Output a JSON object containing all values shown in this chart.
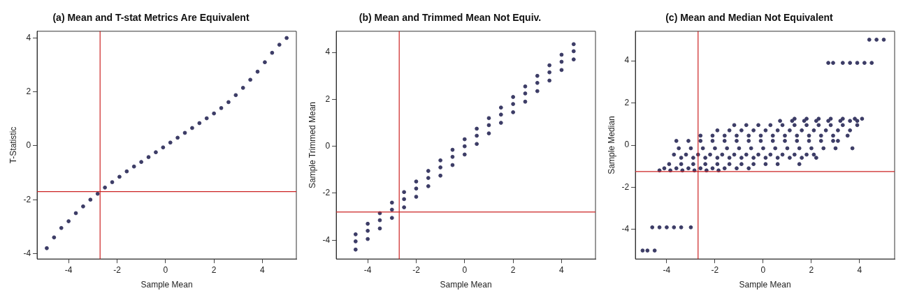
{
  "chart_data": [
    {
      "type": "scatter",
      "title": "(a) Mean and T-stat Metrics Are Equivalent",
      "xlabel": "Sample Mean",
      "ylabel": "T-Statistic",
      "xlim": [
        -5.3,
        5.4
      ],
      "ylim": [
        -4.2,
        4.25
      ],
      "xticks": [
        -4,
        -2,
        0,
        2,
        4
      ],
      "yticks": [
        -4,
        -2,
        0,
        2,
        4
      ],
      "grid": false,
      "marker": "circle",
      "ref_lines": [
        {
          "axis": "x",
          "value": -2.7,
          "color": "#cc2222"
        },
        {
          "axis": "y",
          "value": -1.7,
          "color": "#cc2222"
        }
      ],
      "series": [
        {
          "color": "#3c3c66",
          "x": [
            -4.9,
            -4.6,
            -4.3,
            -4,
            -3.7,
            -3.4,
            -3.1,
            -2.8,
            -2.5,
            -2.2,
            -1.9,
            -1.6,
            -1.3,
            -1,
            -0.7,
            -0.4,
            -0.1,
            0.2,
            0.5,
            0.8,
            1.1,
            1.4,
            1.7,
            2,
            2.3,
            2.6,
            2.9,
            3.2,
            3.5,
            3.8,
            4.1,
            4.4,
            4.7,
            5
          ],
          "values": [
            -3.8,
            -3.4,
            -3.05,
            -2.8,
            -2.5,
            -2.25,
            -2,
            -1.78,
            -1.55,
            -1.35,
            -1.15,
            -0.95,
            -0.77,
            -0.6,
            -0.42,
            -0.24,
            -0.06,
            0.12,
            0.3,
            0.48,
            0.66,
            0.84,
            1.02,
            1.2,
            1.4,
            1.62,
            1.88,
            2.15,
            2.45,
            2.75,
            3.1,
            3.45,
            3.75,
            4
          ]
        }
      ]
    },
    {
      "type": "scatter",
      "title": "(b) Mean and Trimmed Mean Not Equiv.",
      "xlabel": "Sample Mean",
      "ylabel": "Sample Trimmed Mean",
      "xlim": [
        -5.3,
        5.4
      ],
      "ylim": [
        -4.8,
        4.9
      ],
      "xticks": [
        -4,
        -2,
        0,
        2,
        4
      ],
      "yticks": [
        -4,
        -2,
        0,
        2,
        4
      ],
      "grid": false,
      "marker": "circle",
      "ref_lines": [
        {
          "axis": "x",
          "value": -2.7,
          "color": "#cc2222"
        },
        {
          "axis": "y",
          "value": -2.8,
          "color": "#cc2222"
        }
      ],
      "series": [
        {
          "color": "#3c3c66",
          "x": [
            -4.5,
            -4,
            -3.5,
            -3,
            -2.5,
            -2,
            -1.5,
            -1,
            -0.5,
            0,
            0.5,
            1,
            1.5,
            2,
            2.5,
            3,
            3.5,
            4,
            4.5
          ],
          "values": [
            -3.75,
            -3.3,
            -2.85,
            -2.4,
            -1.95,
            -1.5,
            -1.05,
            -0.6,
            -0.15,
            0.3,
            0.75,
            1.2,
            1.65,
            2.1,
            2.55,
            3,
            3.45,
            3.9,
            4.35
          ]
        },
        {
          "color": "#3c3c66",
          "x": [
            -4.5,
            -4,
            -3.5,
            -3,
            -2.5,
            -2,
            -1.5,
            -1,
            -0.5,
            0,
            0.5,
            1,
            1.5,
            2,
            2.5,
            3,
            3.5,
            4,
            4.5
          ],
          "values": [
            -4.05,
            -3.6,
            -3.15,
            -2.7,
            -2.25,
            -1.8,
            -1.35,
            -0.9,
            -0.45,
            0,
            0.45,
            0.9,
            1.35,
            1.8,
            2.25,
            2.7,
            3.15,
            3.6,
            4.05
          ]
        },
        {
          "color": "#3c3c66",
          "x": [
            -4.5,
            -4,
            -3.5,
            -3,
            -2.5,
            -2,
            -1.5,
            -1,
            -0.5,
            0,
            0.5,
            1,
            1.5,
            2,
            2.5,
            3,
            3.5,
            4,
            4.5
          ],
          "values": [
            -4.4,
            -3.95,
            -3.5,
            -3.05,
            -2.6,
            -2.15,
            -1.7,
            -1.25,
            -0.8,
            -0.35,
            0.1,
            0.55,
            1,
            1.45,
            1.9,
            2.35,
            2.8,
            3.25,
            3.7
          ]
        }
      ]
    },
    {
      "type": "scatter",
      "title": "(c) Mean and Median Not Equivalent",
      "xlabel": "Sample Mean",
      "ylabel": "Sample Median",
      "xlim": [
        -5.3,
        5.45
      ],
      "ylim": [
        -5.4,
        5.4
      ],
      "xticks": [
        -4,
        -2,
        0,
        2,
        4
      ],
      "yticks": [
        -4,
        -2,
        0,
        2,
        4
      ],
      "grid": false,
      "marker": "circle",
      "ref_lines": [
        {
          "axis": "x",
          "value": -2.7,
          "color": "#cc2222"
        },
        {
          "axis": "y",
          "value": -1.25,
          "color": "#cc2222"
        }
      ],
      "series": [
        {
          "color": "#3c3c66",
          "x": [
            4.4,
            4.7,
            5
          ],
          "values": [
            5,
            5,
            5
          ]
        },
        {
          "color": "#3c3c66",
          "x": [
            2.7,
            2.9,
            3.3,
            3.6,
            3.9,
            4.2,
            4.5
          ],
          "values": [
            3.9,
            3.9,
            3.9,
            3.9,
            3.9,
            3.9,
            3.9
          ]
        },
        {
          "color": "#3c3c66",
          "x": [
            1.3,
            1.8,
            2.3,
            2.8,
            3.3,
            3.8,
            4.1
          ],
          "values": [
            1.25,
            1.25,
            1.25,
            1.25,
            1.25,
            1.25,
            1.25
          ]
        },
        {
          "color": "#3c3c66",
          "x": [
            0.7,
            1.2,
            1.7,
            2.2,
            2.7,
            3.2,
            3.6,
            3.9
          ],
          "values": [
            1.15,
            1.15,
            1.15,
            1.15,
            1.15,
            1.15,
            1.15,
            1.15
          ]
        },
        {
          "color": "#3c3c66",
          "x": [
            -1.2,
            -0.7,
            -0.2,
            0.3,
            0.8,
            1.3,
            1.8,
            2.3,
            2.8,
            3.3,
            3.9
          ],
          "values": [
            0.95,
            0.95,
            0.95,
            0.95,
            0.95,
            0.95,
            0.95,
            0.95,
            0.95,
            0.95,
            0.95
          ]
        },
        {
          "color": "#3c3c66",
          "x": [
            -1.9,
            -1.4,
            -0.9,
            -0.4,
            0.1,
            0.6,
            1.1,
            1.6,
            2.1,
            2.6,
            3.1,
            3.6
          ],
          "values": [
            0.7,
            0.7,
            0.7,
            0.7,
            0.7,
            0.7,
            0.7,
            0.7,
            0.7,
            0.7,
            0.7,
            0.7
          ]
        },
        {
          "color": "#3c3c66",
          "x": [
            -2.6,
            -2.1,
            -1.6,
            -1.1,
            -0.6,
            -0.1,
            0.4,
            0.9,
            1.4,
            1.9,
            2.4,
            2.9,
            3.5
          ],
          "values": [
            0.45,
            0.45,
            0.45,
            0.45,
            0.45,
            0.45,
            0.45,
            0.45,
            0.45,
            0.45,
            0.45,
            0.45,
            0.45
          ]
        },
        {
          "color": "#3c3c66",
          "x": [
            -3.6,
            -3.1,
            -2.6,
            -2.1,
            -1.6,
            -1.1,
            -0.6,
            -0.1,
            0.4,
            0.9,
            1.4,
            1.9,
            2.4,
            2.9,
            3.1
          ],
          "values": [
            0.2,
            0.2,
            0.2,
            0.2,
            0.2,
            0.2,
            0.2,
            0.2,
            0.2,
            0.2,
            0.2,
            0.2,
            0.2,
            0.2,
            0.2
          ]
        },
        {
          "color": "#3c3c66",
          "x": [
            -3.5,
            -3,
            -2.5,
            -2,
            -1.5,
            -1,
            -0.5,
            0,
            0.5,
            1,
            1.5,
            2,
            2.5,
            3,
            3.7
          ],
          "values": [
            -0.15,
            -0.15,
            -0.15,
            -0.15,
            -0.15,
            -0.15,
            -0.15,
            -0.15,
            -0.15,
            -0.15,
            -0.15,
            -0.15,
            -0.15,
            -0.15,
            -0.15
          ]
        },
        {
          "color": "#3c3c66",
          "x": [
            -3.7,
            -3.2,
            -2.7,
            -2.2,
            -1.7,
            -1.2,
            -0.7,
            -0.2,
            0.3,
            0.8,
            1.3,
            1.8,
            2.1
          ],
          "values": [
            -0.45,
            -0.45,
            -0.45,
            -0.45,
            -0.45,
            -0.45,
            -0.45,
            -0.45,
            -0.45,
            -0.45,
            -0.45,
            -0.45,
            -0.45
          ]
        },
        {
          "color": "#3c3c66",
          "x": [
            -3.4,
            -2.9,
            -2.4,
            -1.9,
            -1.4,
            -0.9,
            -0.4,
            0.1,
            0.6,
            1.1,
            1.6,
            2.2
          ],
          "values": [
            -0.6,
            -0.6,
            -0.6,
            -0.6,
            -0.6,
            -0.6,
            -0.6,
            -0.6,
            -0.6,
            -0.6,
            -0.6,
            -0.6
          ]
        },
        {
          "color": "#3c3c66",
          "x": [
            -3.9,
            -3.4,
            -2.9,
            -2.4,
            -1.9,
            -1.4,
            -0.9,
            -0.4,
            0.1,
            0.6,
            1.5
          ],
          "values": [
            -0.9,
            -0.9,
            -0.9,
            -0.9,
            -0.9,
            -0.9,
            -0.9,
            -0.9,
            -0.9,
            -0.9,
            -0.9
          ]
        },
        {
          "color": "#3c3c66",
          "x": [
            -4.1,
            -3.6,
            -3.1,
            -2.6,
            -2.1,
            -1.6,
            -1.1,
            -0.6
          ],
          "values": [
            -1.1,
            -1.1,
            -1.1,
            -1.1,
            -1.1,
            -1.1,
            -1.1,
            -1.1
          ]
        },
        {
          "color": "#3c3c66",
          "x": [
            -4.3,
            -3.85,
            -3.35,
            -2.85,
            -2.35,
            -1.85
          ],
          "values": [
            -1.2,
            -1.2,
            -1.2,
            -1.2,
            -1.2,
            -1.2
          ]
        },
        {
          "color": "#3c3c66",
          "x": [
            -4.6,
            -4.3,
            -4,
            -3.7,
            -3.4,
            -3
          ],
          "values": [
            -3.9,
            -3.9,
            -3.9,
            -3.9,
            -3.9,
            -3.9
          ]
        },
        {
          "color": "#3c3c66",
          "x": [
            -5,
            -4.8,
            -4.5
          ],
          "values": [
            -5,
            -5,
            -5
          ]
        }
      ]
    }
  ]
}
